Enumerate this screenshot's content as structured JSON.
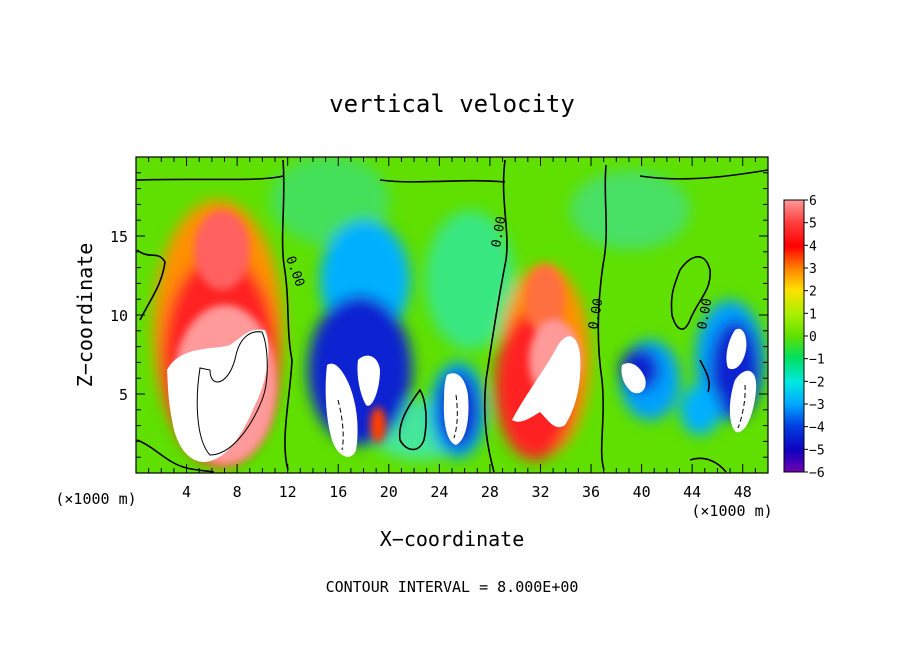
{
  "chart_data": {
    "type": "heatmap",
    "title": "vertical velocity",
    "xlabel": "X−coordinate",
    "ylabel": "Z−coordinate",
    "x_multiplier_label": "(×1000 m)",
    "y_multiplier_label": "(×1000 m)",
    "footer": "CONTOUR INTERVAL = 8.000E+00",
    "xlim": [
      0,
      50
    ],
    "ylim": [
      0,
      20
    ],
    "x_ticks": [
      "4",
      "8",
      "12",
      "16",
      "20",
      "24",
      "28",
      "32",
      "36",
      "40",
      "44",
      "48"
    ],
    "y_ticks": [
      "5",
      "10",
      "15"
    ],
    "colorbar": {
      "range": [
        -6,
        6
      ],
      "tick_labels": [
        "6",
        "5",
        "4",
        "3",
        "2",
        "1",
        "0",
        "−1",
        "−2",
        "−3",
        "−4",
        "−5",
        "−6"
      ]
    },
    "contour_labels": [
      "0.00",
      "0.00",
      "0.00",
      "0.00"
    ],
    "features": [
      {
        "kind": "updraft",
        "x_center": 6.5,
        "z_center": 6,
        "peak": 8
      },
      {
        "kind": "downdraft",
        "x_center": 17.5,
        "z_center": 4.5,
        "peak": -7
      },
      {
        "kind": "downdraft",
        "x_center": 24.5,
        "z_center": 4,
        "peak": -6.5
      },
      {
        "kind": "updraft",
        "x_center": 31.5,
        "z_center": 6,
        "peak": 7.5
      },
      {
        "kind": "downdraft",
        "x_center": 39,
        "z_center": 6,
        "peak": -6
      },
      {
        "kind": "downdraft",
        "x_center": 47,
        "z_center": 5,
        "peak": -6.5
      }
    ]
  }
}
